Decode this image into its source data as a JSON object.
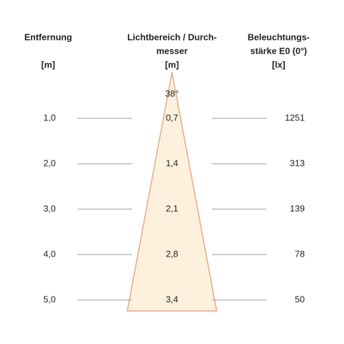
{
  "headers": {
    "distance": {
      "lines": [
        "Entfernung"
      ],
      "unit": "[m]"
    },
    "diameter": {
      "lines": [
        "Lichtbereich / Durch-",
        "messer"
      ],
      "unit": "[m]"
    },
    "illuminance": {
      "lines": [
        "Beleuchtungs-",
        "stärke E0 (0°)"
      ],
      "unit": "[lx]"
    }
  },
  "angle": "38°",
  "rows": [
    {
      "distance": "1,0",
      "diameter": "0,7",
      "illuminance": "1251"
    },
    {
      "distance": "2,0",
      "diameter": "1,4",
      "illuminance": "313"
    },
    {
      "distance": "3,0",
      "diameter": "2,1",
      "illuminance": "139"
    },
    {
      "distance": "4,0",
      "diameter": "2,8",
      "illuminance": "78"
    },
    {
      "distance": "5,0",
      "diameter": "3,4",
      "illuminance": "50"
    }
  ]
}
